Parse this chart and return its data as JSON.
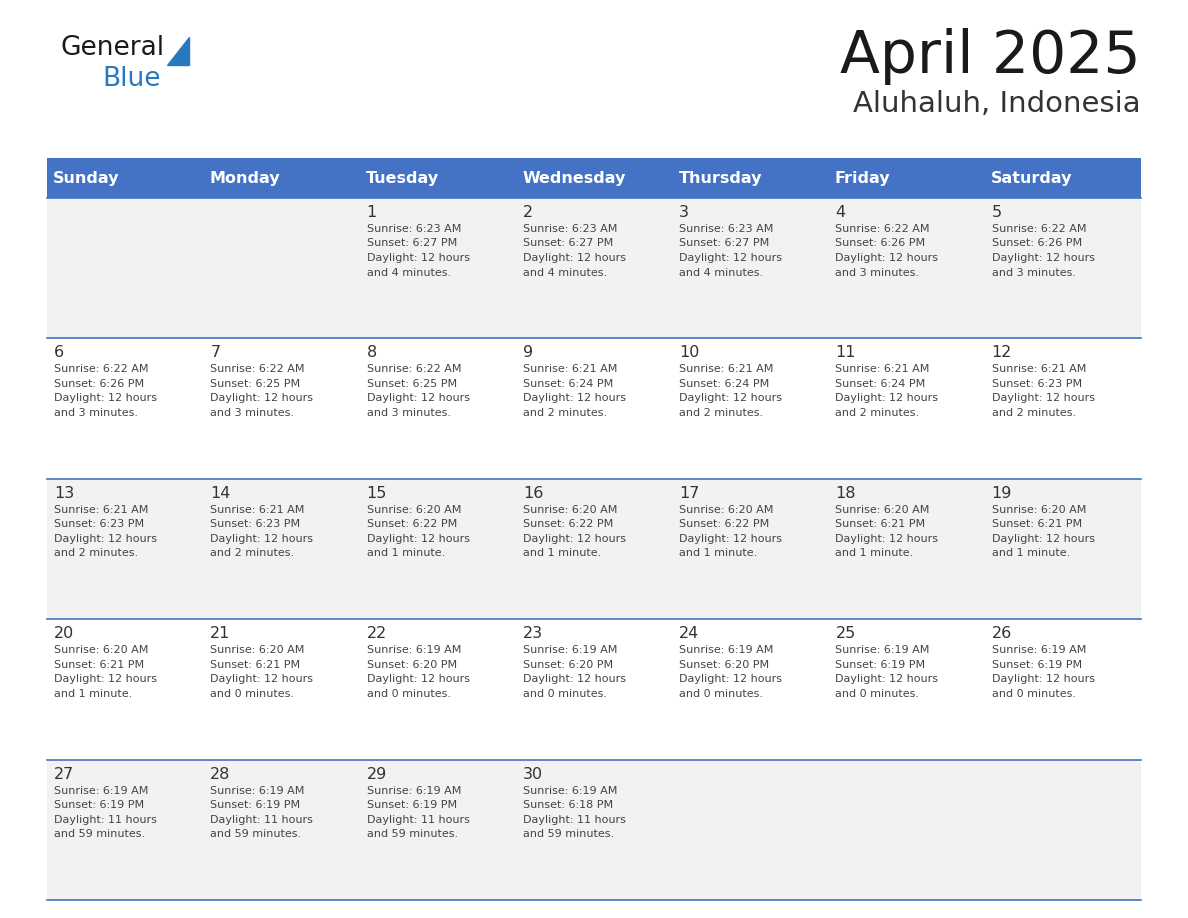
{
  "title": "April 2025",
  "subtitle": "Aluhaluh, Indonesia",
  "days_of_week": [
    "Sunday",
    "Monday",
    "Tuesday",
    "Wednesday",
    "Thursday",
    "Friday",
    "Saturday"
  ],
  "header_bg": "#4472C4",
  "header_text_color": "#FFFFFF",
  "row_bg_odd": "#F2F2F2",
  "row_bg_even": "#FFFFFF",
  "cell_border_color": "#4472C4",
  "day_num_color": "#333333",
  "text_color": "#444444",
  "title_color": "#1a1a1a",
  "subtitle_color": "#333333",
  "calendar_data": [
    [
      {
        "day": "",
        "lines": []
      },
      {
        "day": "",
        "lines": []
      },
      {
        "day": "1",
        "lines": [
          "Sunrise: 6:23 AM",
          "Sunset: 6:27 PM",
          "Daylight: 12 hours",
          "and 4 minutes."
        ]
      },
      {
        "day": "2",
        "lines": [
          "Sunrise: 6:23 AM",
          "Sunset: 6:27 PM",
          "Daylight: 12 hours",
          "and 4 minutes."
        ]
      },
      {
        "day": "3",
        "lines": [
          "Sunrise: 6:23 AM",
          "Sunset: 6:27 PM",
          "Daylight: 12 hours",
          "and 4 minutes."
        ]
      },
      {
        "day": "4",
        "lines": [
          "Sunrise: 6:22 AM",
          "Sunset: 6:26 PM",
          "Daylight: 12 hours",
          "and 3 minutes."
        ]
      },
      {
        "day": "5",
        "lines": [
          "Sunrise: 6:22 AM",
          "Sunset: 6:26 PM",
          "Daylight: 12 hours",
          "and 3 minutes."
        ]
      }
    ],
    [
      {
        "day": "6",
        "lines": [
          "Sunrise: 6:22 AM",
          "Sunset: 6:26 PM",
          "Daylight: 12 hours",
          "and 3 minutes."
        ]
      },
      {
        "day": "7",
        "lines": [
          "Sunrise: 6:22 AM",
          "Sunset: 6:25 PM",
          "Daylight: 12 hours",
          "and 3 minutes."
        ]
      },
      {
        "day": "8",
        "lines": [
          "Sunrise: 6:22 AM",
          "Sunset: 6:25 PM",
          "Daylight: 12 hours",
          "and 3 minutes."
        ]
      },
      {
        "day": "9",
        "lines": [
          "Sunrise: 6:21 AM",
          "Sunset: 6:24 PM",
          "Daylight: 12 hours",
          "and 2 minutes."
        ]
      },
      {
        "day": "10",
        "lines": [
          "Sunrise: 6:21 AM",
          "Sunset: 6:24 PM",
          "Daylight: 12 hours",
          "and 2 minutes."
        ]
      },
      {
        "day": "11",
        "lines": [
          "Sunrise: 6:21 AM",
          "Sunset: 6:24 PM",
          "Daylight: 12 hours",
          "and 2 minutes."
        ]
      },
      {
        "day": "12",
        "lines": [
          "Sunrise: 6:21 AM",
          "Sunset: 6:23 PM",
          "Daylight: 12 hours",
          "and 2 minutes."
        ]
      }
    ],
    [
      {
        "day": "13",
        "lines": [
          "Sunrise: 6:21 AM",
          "Sunset: 6:23 PM",
          "Daylight: 12 hours",
          "and 2 minutes."
        ]
      },
      {
        "day": "14",
        "lines": [
          "Sunrise: 6:21 AM",
          "Sunset: 6:23 PM",
          "Daylight: 12 hours",
          "and 2 minutes."
        ]
      },
      {
        "day": "15",
        "lines": [
          "Sunrise: 6:20 AM",
          "Sunset: 6:22 PM",
          "Daylight: 12 hours",
          "and 1 minute."
        ]
      },
      {
        "day": "16",
        "lines": [
          "Sunrise: 6:20 AM",
          "Sunset: 6:22 PM",
          "Daylight: 12 hours",
          "and 1 minute."
        ]
      },
      {
        "day": "17",
        "lines": [
          "Sunrise: 6:20 AM",
          "Sunset: 6:22 PM",
          "Daylight: 12 hours",
          "and 1 minute."
        ]
      },
      {
        "day": "18",
        "lines": [
          "Sunrise: 6:20 AM",
          "Sunset: 6:21 PM",
          "Daylight: 12 hours",
          "and 1 minute."
        ]
      },
      {
        "day": "19",
        "lines": [
          "Sunrise: 6:20 AM",
          "Sunset: 6:21 PM",
          "Daylight: 12 hours",
          "and 1 minute."
        ]
      }
    ],
    [
      {
        "day": "20",
        "lines": [
          "Sunrise: 6:20 AM",
          "Sunset: 6:21 PM",
          "Daylight: 12 hours",
          "and 1 minute."
        ]
      },
      {
        "day": "21",
        "lines": [
          "Sunrise: 6:20 AM",
          "Sunset: 6:21 PM",
          "Daylight: 12 hours",
          "and 0 minutes."
        ]
      },
      {
        "day": "22",
        "lines": [
          "Sunrise: 6:19 AM",
          "Sunset: 6:20 PM",
          "Daylight: 12 hours",
          "and 0 minutes."
        ]
      },
      {
        "day": "23",
        "lines": [
          "Sunrise: 6:19 AM",
          "Sunset: 6:20 PM",
          "Daylight: 12 hours",
          "and 0 minutes."
        ]
      },
      {
        "day": "24",
        "lines": [
          "Sunrise: 6:19 AM",
          "Sunset: 6:20 PM",
          "Daylight: 12 hours",
          "and 0 minutes."
        ]
      },
      {
        "day": "25",
        "lines": [
          "Sunrise: 6:19 AM",
          "Sunset: 6:19 PM",
          "Daylight: 12 hours",
          "and 0 minutes."
        ]
      },
      {
        "day": "26",
        "lines": [
          "Sunrise: 6:19 AM",
          "Sunset: 6:19 PM",
          "Daylight: 12 hours",
          "and 0 minutes."
        ]
      }
    ],
    [
      {
        "day": "27",
        "lines": [
          "Sunrise: 6:19 AM",
          "Sunset: 6:19 PM",
          "Daylight: 11 hours",
          "and 59 minutes."
        ]
      },
      {
        "day": "28",
        "lines": [
          "Sunrise: 6:19 AM",
          "Sunset: 6:19 PM",
          "Daylight: 11 hours",
          "and 59 minutes."
        ]
      },
      {
        "day": "29",
        "lines": [
          "Sunrise: 6:19 AM",
          "Sunset: 6:19 PM",
          "Daylight: 11 hours",
          "and 59 minutes."
        ]
      },
      {
        "day": "30",
        "lines": [
          "Sunrise: 6:19 AM",
          "Sunset: 6:18 PM",
          "Daylight: 11 hours",
          "and 59 minutes."
        ]
      },
      {
        "day": "",
        "lines": []
      },
      {
        "day": "",
        "lines": []
      },
      {
        "day": "",
        "lines": []
      }
    ]
  ],
  "logo_general_color": "#1a1a1a",
  "logo_blue_color": "#2878BE",
  "logo_triangle_color": "#2878BE",
  "figsize": [
    11.88,
    9.18
  ],
  "dpi": 100
}
